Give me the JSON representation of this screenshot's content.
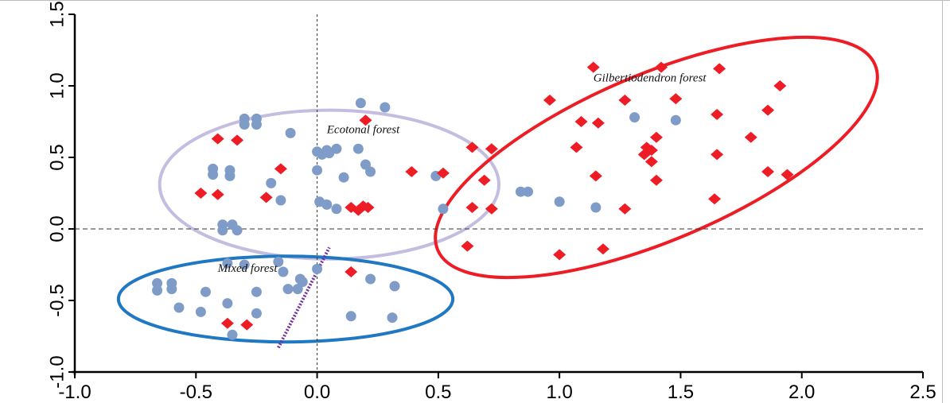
{
  "chart_data": {
    "type": "scatter",
    "title": "",
    "xlabel": "",
    "ylabel": "",
    "xlim": [
      -1.0,
      2.5
    ],
    "ylim": [
      -1.0,
      1.5
    ],
    "x_ticks": [
      "-1.0",
      "-0.5",
      "0.0",
      "0.5",
      "1.0",
      "1.5",
      "2.0",
      "2.5"
    ],
    "y_ticks": [
      "-1.0",
      "-0.5",
      "0.0",
      "0.5",
      "1.0",
      "1.5"
    ],
    "grid": false,
    "reference_lines": {
      "x": 0,
      "y": 0
    },
    "colors": {
      "blue_points": "#7f9cc8",
      "red_points": "#ee1c25",
      "ecotonal_ellipse": "#c4bde0",
      "gilbertiodendron_ellipse": "#ee1c25",
      "mixed_ellipse": "#1f78c1",
      "vector": "#7030a0"
    },
    "annotations": [
      {
        "text": "Gilbertiodendron forest",
        "x": 1.14,
        "y": 1.03
      },
      {
        "text": "Ecotonal forest",
        "x": 0.04,
        "y": 0.67
      },
      {
        "text": "Mixed forest",
        "x": -0.41,
        "y": -0.3
      }
    ],
    "ellipses": [
      {
        "group": "Ecotonal forest",
        "color": "#c4bde0",
        "cx": 0.05,
        "cy": 0.31,
        "rx": 0.7,
        "ry": 0.52,
        "angle": 0
      },
      {
        "group": "Gilbertiodendron forest",
        "color": "#ee1c25",
        "cx": 1.4,
        "cy": 0.5,
        "rx": 0.98,
        "ry": 0.58,
        "angle": 23
      },
      {
        "group": "Mixed forest",
        "color": "#1f78c1",
        "cx": -0.13,
        "cy": -0.49,
        "rx": 0.69,
        "ry": 0.3,
        "angle": 0
      }
    ],
    "vector": {
      "from": [
        -0.16,
        -0.83
      ],
      "to": [
        0.05,
        -0.13
      ],
      "color": "#7030a0"
    },
    "series": [
      {
        "marker": "circle",
        "color": "#7f9cc8",
        "points": [
          [
            -0.3,
            0.77
          ],
          [
            -0.25,
            0.77
          ],
          [
            -0.3,
            0.73
          ],
          [
            -0.25,
            0.73
          ],
          [
            -0.11,
            0.67
          ],
          [
            0.18,
            0.88
          ],
          [
            0.28,
            0.85
          ],
          [
            -0.43,
            0.42
          ],
          [
            -0.36,
            0.41
          ],
          [
            -0.43,
            0.38
          ],
          [
            -0.36,
            0.37
          ],
          [
            -0.19,
            0.32
          ],
          [
            -0.15,
            0.2
          ],
          [
            0.04,
            0.55
          ],
          [
            0.08,
            0.56
          ],
          [
            0.0,
            0.54
          ],
          [
            0.02,
            0.52
          ],
          [
            0.05,
            0.53
          ],
          [
            0.17,
            0.56
          ],
          [
            0.2,
            0.45
          ],
          [
            0.22,
            0.4
          ],
          [
            0.11,
            0.36
          ],
          [
            0.0,
            0.41
          ],
          [
            0.01,
            0.19
          ],
          [
            0.04,
            0.17
          ],
          [
            0.08,
            0.14
          ],
          [
            0.49,
            0.37
          ],
          [
            0.52,
            0.14
          ],
          [
            -0.39,
            0.03
          ],
          [
            -0.35,
            0.03
          ],
          [
            -0.39,
            -0.01
          ],
          [
            -0.33,
            -0.01
          ],
          [
            -0.37,
            -0.24
          ],
          [
            -0.3,
            -0.25
          ],
          [
            -0.16,
            -0.23
          ],
          [
            -0.14,
            -0.3
          ],
          [
            -0.08,
            -0.42
          ],
          [
            -0.12,
            -0.42
          ],
          [
            -0.07,
            -0.35
          ],
          [
            0.0,
            -0.28
          ],
          [
            -0.66,
            -0.38
          ],
          [
            -0.6,
            -0.38
          ],
          [
            -0.66,
            -0.43
          ],
          [
            -0.6,
            -0.42
          ],
          [
            -0.57,
            -0.55
          ],
          [
            -0.46,
            -0.44
          ],
          [
            -0.37,
            -0.52
          ],
          [
            -0.48,
            -0.58
          ],
          [
            -0.25,
            -0.44
          ],
          [
            -0.25,
            -0.59
          ],
          [
            -0.35,
            -0.74
          ],
          [
            0.22,
            -0.35
          ],
          [
            0.32,
            -0.4
          ],
          [
            0.14,
            -0.61
          ],
          [
            0.31,
            -0.62
          ],
          [
            0.84,
            0.26
          ],
          [
            0.87,
            0.26
          ],
          [
            1.0,
            0.19
          ],
          [
            1.15,
            0.15
          ],
          [
            1.31,
            0.78
          ],
          [
            1.48,
            0.76
          ],
          [
            -0.06,
            -0.37
          ]
        ]
      },
      {
        "marker": "diamond",
        "color": "#ee1c25",
        "points": [
          [
            0.2,
            0.76
          ],
          [
            -0.41,
            0.63
          ],
          [
            -0.33,
            0.62
          ],
          [
            -0.15,
            0.42
          ],
          [
            -0.48,
            0.25
          ],
          [
            -0.41,
            0.24
          ],
          [
            -0.21,
            0.22
          ],
          [
            0.14,
            0.15
          ],
          [
            0.17,
            0.13
          ],
          [
            0.19,
            0.16
          ],
          [
            0.21,
            0.15
          ],
          [
            0.39,
            0.4
          ],
          [
            0.52,
            0.39
          ],
          [
            0.64,
            0.57
          ],
          [
            0.72,
            0.56
          ],
          [
            0.69,
            0.34
          ],
          [
            0.64,
            0.15
          ],
          [
            0.72,
            0.14
          ],
          [
            0.62,
            -0.12
          ],
          [
            1.0,
            -0.18
          ],
          [
            1.18,
            -0.14
          ],
          [
            0.14,
            -0.3
          ],
          [
            -0.37,
            -0.66
          ],
          [
            -0.29,
            -0.67
          ],
          [
            0.96,
            0.9
          ],
          [
            1.09,
            0.75
          ],
          [
            1.16,
            0.74
          ],
          [
            1.14,
            1.13
          ],
          [
            1.42,
            1.13
          ],
          [
            1.66,
            1.12
          ],
          [
            1.27,
            0.9
          ],
          [
            1.48,
            0.91
          ],
          [
            1.91,
            1.0
          ],
          [
            1.65,
            0.8
          ],
          [
            1.86,
            0.83
          ],
          [
            1.07,
            0.57
          ],
          [
            1.4,
            0.64
          ],
          [
            1.36,
            0.57
          ],
          [
            1.38,
            0.55
          ],
          [
            1.35,
            0.52
          ],
          [
            1.38,
            0.47
          ],
          [
            1.4,
            0.34
          ],
          [
            1.15,
            0.37
          ],
          [
            1.65,
            0.52
          ],
          [
            1.79,
            0.64
          ],
          [
            1.86,
            0.4
          ],
          [
            1.94,
            0.38
          ],
          [
            1.27,
            0.14
          ],
          [
            1.64,
            0.21
          ]
        ]
      }
    ]
  }
}
